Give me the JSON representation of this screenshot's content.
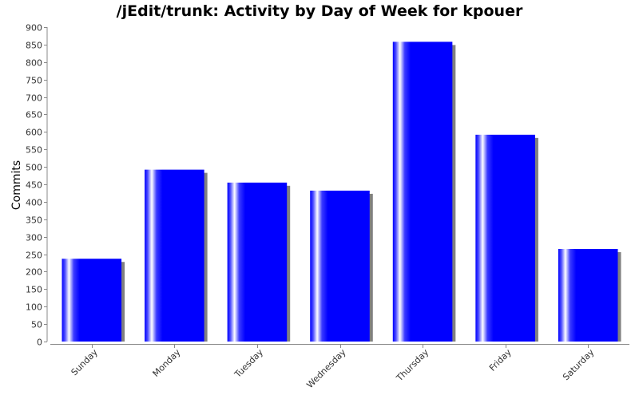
{
  "chart_data": {
    "type": "bar",
    "title": "/jEdit/trunk: Activity by Day of Week for kpouer",
    "xlabel": "",
    "ylabel": "Commits",
    "categories": [
      "Sunday",
      "Monday",
      "Tuesday",
      "Wednesday",
      "Thursday",
      "Friday",
      "Saturday"
    ],
    "values": [
      237,
      492,
      455,
      432,
      858,
      592,
      265
    ],
    "ylim": [
      0,
      900
    ],
    "yticks": [
      0,
      50,
      100,
      150,
      200,
      250,
      300,
      350,
      400,
      450,
      500,
      550,
      600,
      650,
      700,
      750,
      800,
      850,
      900
    ],
    "grid": false,
    "legend": "none",
    "colors": {
      "bar": "#0000ff",
      "bar_highlight": "#ffffff",
      "shadow": "#808080",
      "axis": "#888888"
    }
  }
}
